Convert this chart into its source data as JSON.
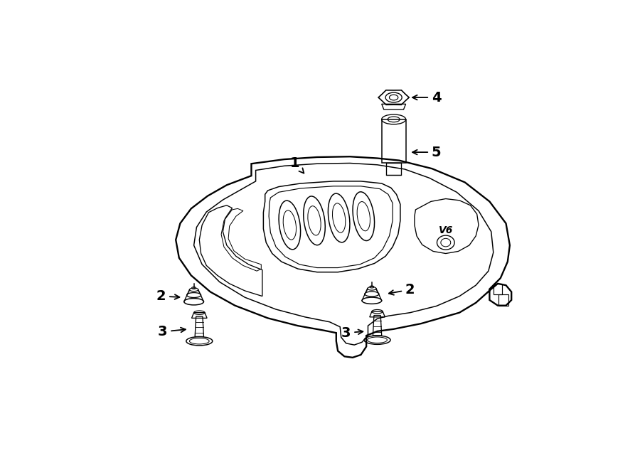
{
  "bg_color": "#ffffff",
  "line_color": "#000000",
  "lw": 1.2,
  "fig_width": 9.0,
  "fig_height": 6.61,
  "dpi": 100
}
